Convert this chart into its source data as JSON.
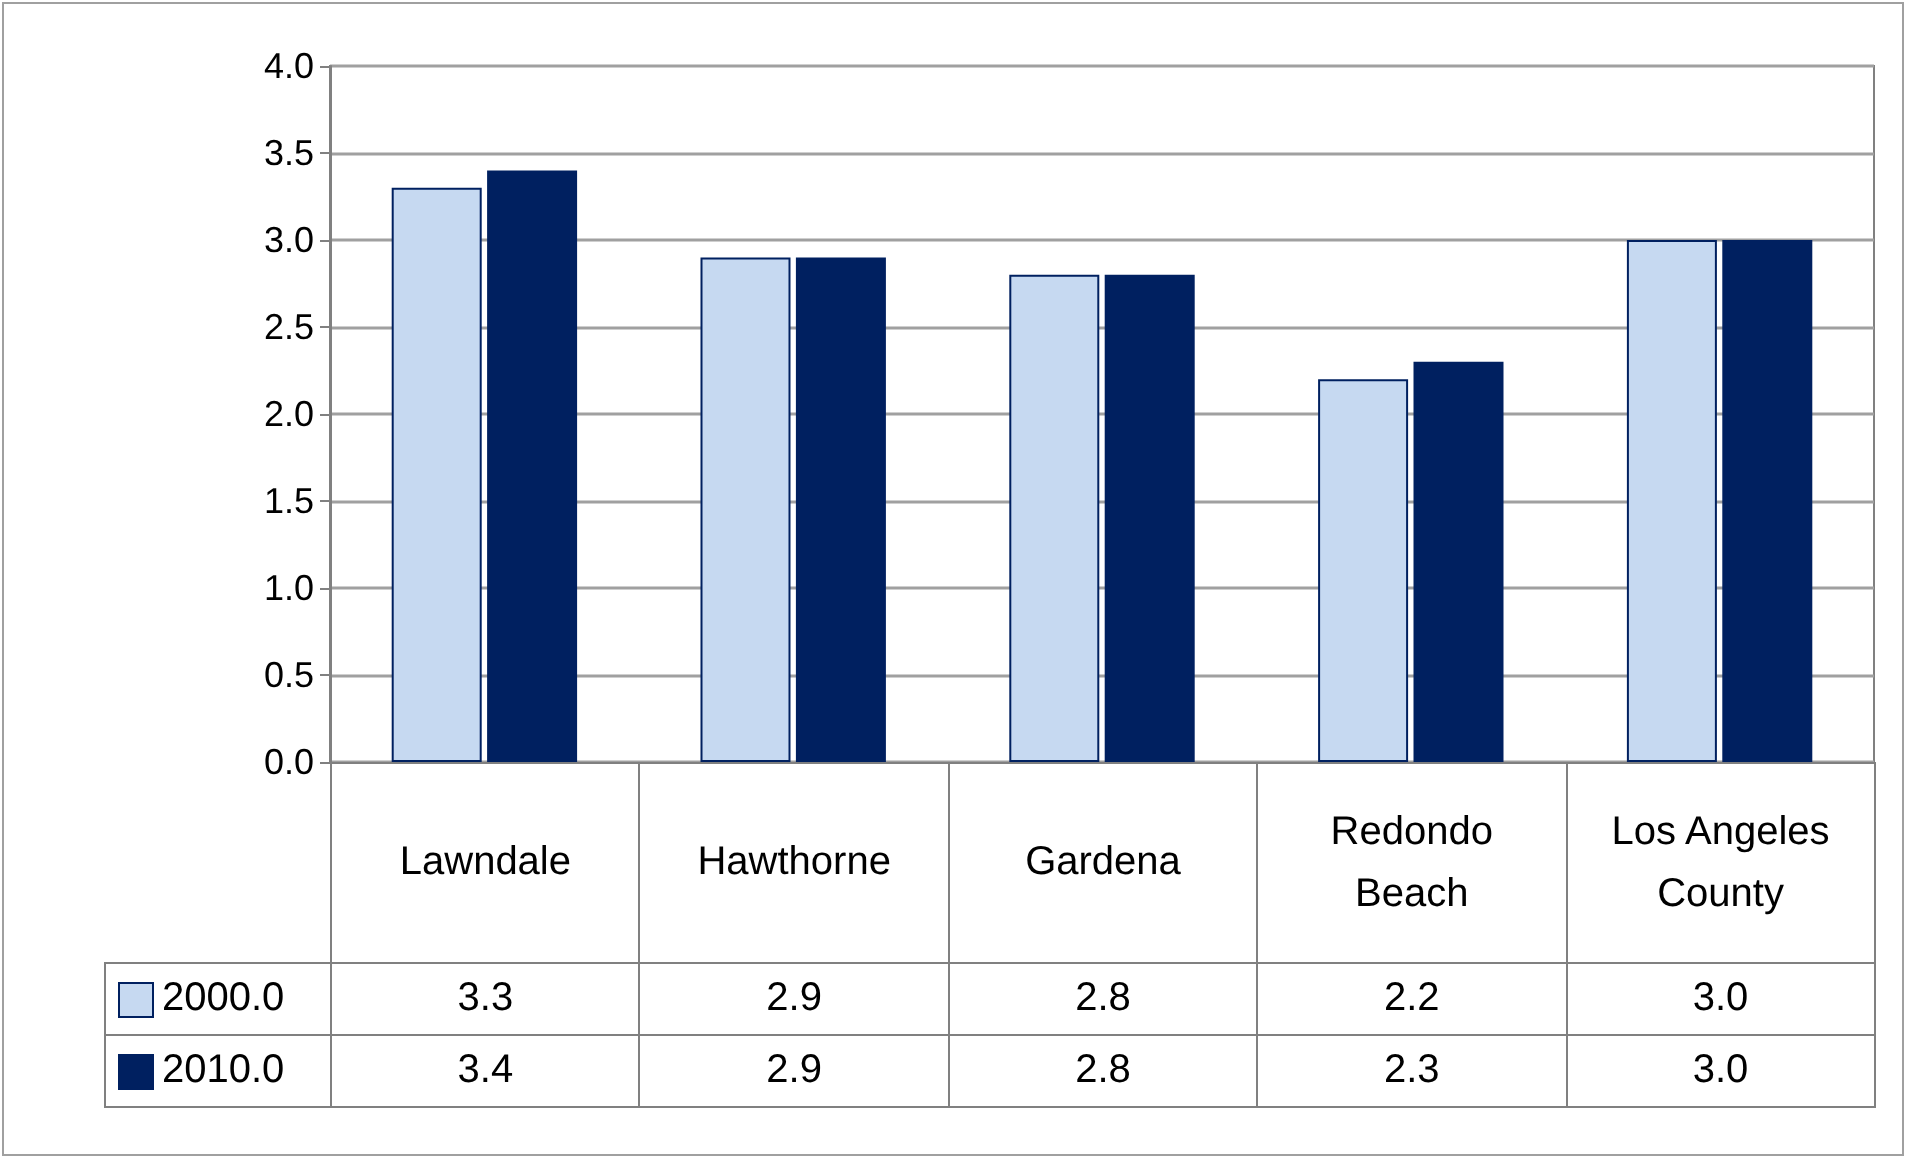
{
  "chart_data": {
    "type": "bar",
    "categories": [
      "Lawndale",
      "Hawthorne",
      "Gardena",
      "Redondo Beach",
      "Los Angeles County"
    ],
    "series": [
      {
        "name": "2000.0",
        "color": "#c6d9f1",
        "values": [
          3.3,
          2.9,
          2.8,
          2.2,
          3.0
        ],
        "value_labels": [
          "3.3",
          "2.9",
          "2.8",
          "2.2",
          "3.0"
        ]
      },
      {
        "name": "2010.0",
        "color": "#002060",
        "values": [
          3.4,
          2.9,
          2.8,
          2.3,
          3.0
        ],
        "value_labels": [
          "3.4",
          "2.9",
          "2.8",
          "2.3",
          "3.0"
        ]
      }
    ],
    "ylim": [
      0,
      4
    ],
    "yticks": [
      {
        "value": 0,
        "label": "0.0"
      },
      0.5,
      {
        "value": 1,
        "label": "1.0"
      },
      1.5,
      {
        "value": 2,
        "label": "2.0"
      },
      2.5,
      {
        "value": 3,
        "label": "3.0"
      },
      3.5,
      {
        "value": 4,
        "label": "4.0"
      }
    ],
    "grid": "y",
    "legend": "bottom left"
  }
}
